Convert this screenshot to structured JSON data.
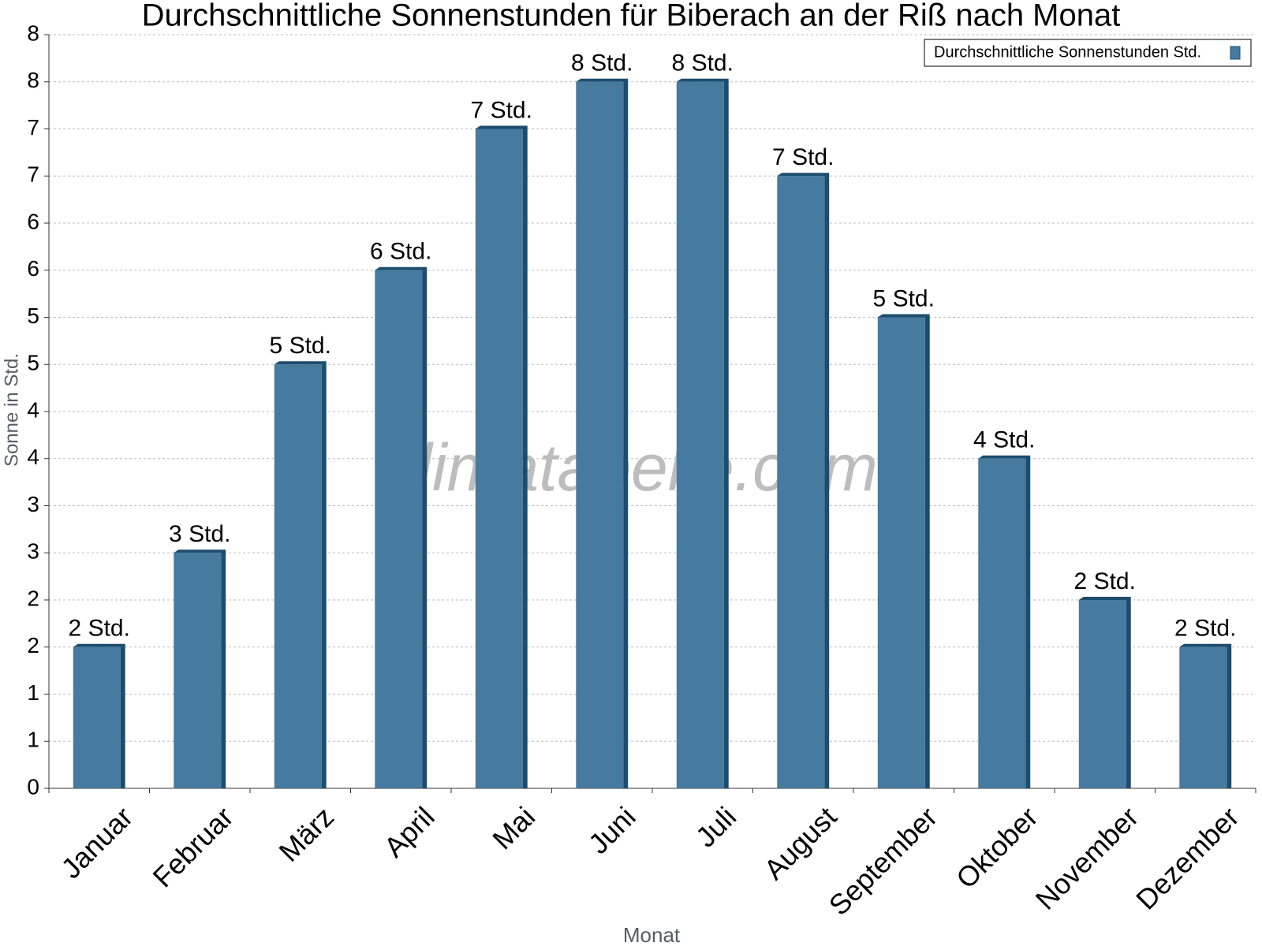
{
  "chart_data": {
    "type": "bar",
    "title": "Durchschnittliche Sonnenstunden für Biberach an der Riß nach Monat",
    "watermark": "klimatabelle.com",
    "x_label": "Monat",
    "y_label": "Sonne in Std.",
    "categories": [
      "Januar",
      "Februar",
      "März",
      "April",
      "Mai",
      "Juni",
      "Juli",
      "August",
      "September",
      "Oktober",
      "November",
      "Dezember"
    ],
    "series": [
      {
        "name": "Durchschnittliche Sonnenstunden Std.",
        "color": "#467a9e",
        "values": [
          1.5,
          2.5,
          4.5,
          5.5,
          7,
          7.5,
          7.5,
          6.5,
          5,
          3.5,
          2,
          1.5
        ],
        "value_labels": [
          "2 Std.",
          "3 Std.",
          "5 Std.",
          "6 Std.",
          "7 Std.",
          "8 Std.",
          "8 Std.",
          "7 Std.",
          "5 Std.",
          "4 Std.",
          "2 Std.",
          "2 Std."
        ]
      }
    ],
    "ylim": [
      0,
      8
    ],
    "yticks": [
      0,
      {
        "value": 0.5,
        "label": "1"
      },
      1,
      {
        "value": 1.5,
        "label": "2"
      },
      2,
      {
        "value": 2.5,
        "label": "3"
      },
      3,
      {
        "value": 3.5,
        "label": "4"
      },
      4,
      {
        "value": 4.5,
        "label": "5"
      },
      5,
      {
        "value": 5.5,
        "label": "6"
      },
      6,
      {
        "value": 6.5,
        "label": "7"
      },
      7,
      {
        "value": 7.5,
        "label": "8"
      },
      8
    ],
    "grid": true,
    "legend": "top-right"
  }
}
